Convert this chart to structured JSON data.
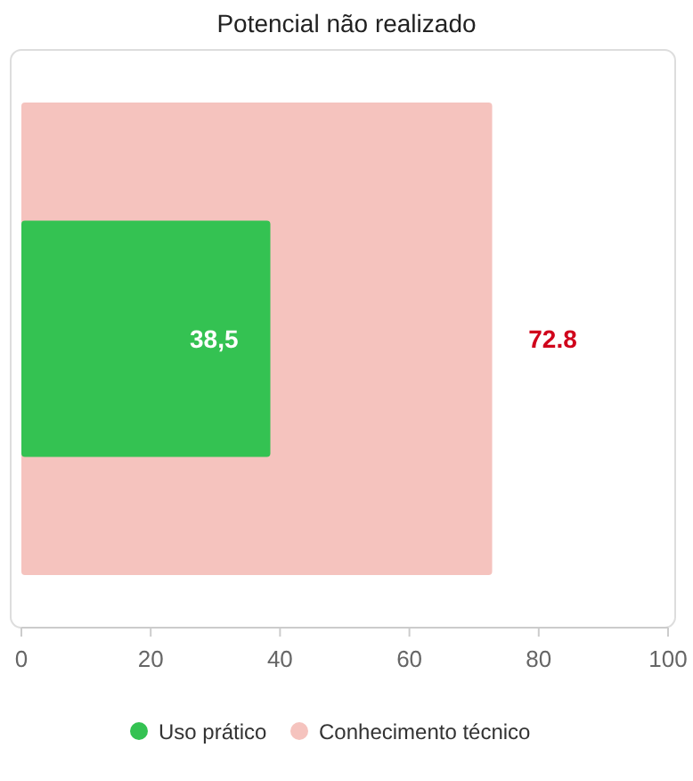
{
  "chart_data": {
    "type": "bar",
    "orientation": "horizontal",
    "title": "Potencial não realizado",
    "categories": [
      null
    ],
    "series": [
      {
        "name": "Uso prático",
        "color": "#34c252",
        "values": [
          38.5
        ],
        "value_labels": [
          "38,5"
        ]
      },
      {
        "name": "Conhecimento técnico",
        "color": "#f5c3be",
        "values": [
          72.8
        ],
        "value_labels": [
          "72.8"
        ]
      }
    ],
    "xlim": [
      0,
      100
    ],
    "xticks": [
      0,
      20,
      40,
      60,
      80,
      100
    ],
    "legend": "bottom",
    "grid": false
  }
}
